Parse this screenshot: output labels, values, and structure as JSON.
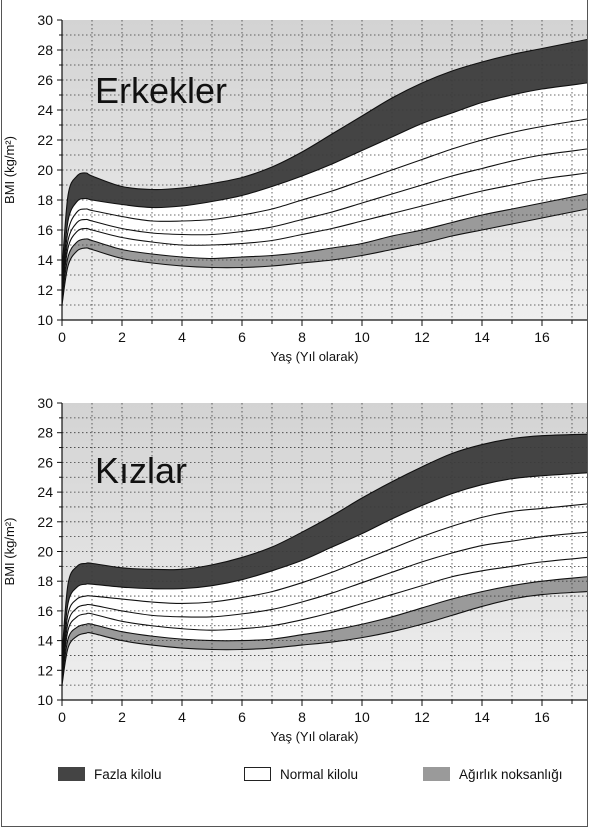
{
  "colors": {
    "overweight": "#444444",
    "normal": "#ffffff",
    "underweight": "#9a9a9a",
    "background": "#d8d8d8",
    "grid": "#3a3a3a"
  },
  "legend": {
    "overweight_label": "Fazla kilolu",
    "normal_label": "Normal kilolu",
    "underweight_label": "Ağırlık noksanlığı"
  },
  "chart_data": [
    {
      "type": "area",
      "title": "Erkekler",
      "xlabel": "Yaş (Yıl olarak)",
      "ylabel": "BMI (kg/m²)",
      "xlim": [
        0,
        17.5
      ],
      "ylim": [
        10,
        30
      ],
      "x_ticks": [
        0,
        2,
        4,
        6,
        8,
        10,
        12,
        14,
        16
      ],
      "y_ticks": [
        10,
        12,
        14,
        16,
        18,
        20,
        22,
        24,
        26,
        28,
        30
      ],
      "grid": true,
      "x": [
        0,
        0.2,
        0.5,
        0.8,
        1,
        2,
        3,
        4,
        5,
        6,
        7,
        8,
        9,
        10,
        11,
        12,
        13,
        14,
        15,
        16,
        17.5
      ],
      "series": [
        {
          "values": [
            13.2,
            18.3,
            19.6,
            19.8,
            19.6,
            18.9,
            18.7,
            18.8,
            19.1,
            19.5,
            20.2,
            21.2,
            22.4,
            23.6,
            24.8,
            25.8,
            26.6,
            27.2,
            27.7,
            28.1,
            28.7
          ]
        },
        {
          "values": [
            12.6,
            16.6,
            17.9,
            18.1,
            18.0,
            17.7,
            17.5,
            17.6,
            17.9,
            18.3,
            18.9,
            19.6,
            20.4,
            21.3,
            22.2,
            23.1,
            23.8,
            24.5,
            25.0,
            25.4,
            25.8
          ]
        },
        {
          "values": [
            12.3,
            15.9,
            17.2,
            17.4,
            17.3,
            16.9,
            16.6,
            16.6,
            16.7,
            17.0,
            17.4,
            18.0,
            18.6,
            19.3,
            20.0,
            20.7,
            21.4,
            22.0,
            22.5,
            22.9,
            23.4
          ]
        },
        {
          "values": [
            12.0,
            15.3,
            16.5,
            16.7,
            16.6,
            16.1,
            15.8,
            15.7,
            15.7,
            15.9,
            16.2,
            16.7,
            17.2,
            17.8,
            18.4,
            19.0,
            19.6,
            20.1,
            20.6,
            21.0,
            21.4
          ]
        },
        {
          "values": [
            11.7,
            14.8,
            15.9,
            16.1,
            16.0,
            15.5,
            15.2,
            15.0,
            15.0,
            15.1,
            15.3,
            15.7,
            16.1,
            16.6,
            17.1,
            17.6,
            18.1,
            18.6,
            19.0,
            19.4,
            19.8
          ]
        },
        {
          "values": [
            11.4,
            14.2,
            15.2,
            15.4,
            15.3,
            14.7,
            14.4,
            14.2,
            14.1,
            14.2,
            14.3,
            14.5,
            14.8,
            15.1,
            15.6,
            16.0,
            16.5,
            17.0,
            17.4,
            17.8,
            18.4
          ]
        },
        {
          "values": [
            11.0,
            13.6,
            14.6,
            14.8,
            14.7,
            14.1,
            13.8,
            13.6,
            13.5,
            13.5,
            13.6,
            13.8,
            14.0,
            14.3,
            14.7,
            15.1,
            15.6,
            16.0,
            16.4,
            16.8,
            17.4
          ]
        }
      ]
    },
    {
      "type": "area",
      "title": "Kızlar",
      "xlabel": "Yaş (Yıl olarak)",
      "ylabel": "BMI (kg/m²)",
      "xlim": [
        0,
        17.5
      ],
      "ylim": [
        10,
        30
      ],
      "x_ticks": [
        0,
        2,
        4,
        6,
        8,
        10,
        12,
        14,
        16
      ],
      "y_ticks": [
        10,
        12,
        14,
        16,
        18,
        20,
        22,
        24,
        26,
        28,
        30
      ],
      "grid": true,
      "x": [
        0,
        0.2,
        0.5,
        0.8,
        1,
        2,
        3,
        4,
        5,
        6,
        7,
        8,
        9,
        10,
        11,
        12,
        13,
        14,
        15,
        16,
        17.5
      ],
      "series": [
        {
          "values": [
            13.0,
            17.8,
            19.0,
            19.2,
            19.2,
            18.9,
            18.8,
            18.8,
            19.1,
            19.6,
            20.3,
            21.3,
            22.4,
            23.6,
            24.7,
            25.7,
            26.6,
            27.2,
            27.6,
            27.8,
            27.9
          ]
        },
        {
          "values": [
            12.5,
            16.5,
            17.6,
            17.8,
            17.8,
            17.6,
            17.5,
            17.5,
            17.7,
            18.1,
            18.7,
            19.4,
            20.3,
            21.2,
            22.2,
            23.1,
            23.9,
            24.5,
            24.9,
            25.1,
            25.3
          ]
        },
        {
          "values": [
            12.2,
            15.8,
            16.8,
            17.0,
            17.0,
            16.8,
            16.6,
            16.5,
            16.6,
            16.9,
            17.3,
            17.9,
            18.6,
            19.4,
            20.2,
            21.0,
            21.7,
            22.3,
            22.7,
            22.9,
            23.2
          ]
        },
        {
          "values": [
            11.9,
            15.2,
            16.2,
            16.4,
            16.4,
            16.0,
            15.7,
            15.6,
            15.6,
            15.8,
            16.1,
            16.6,
            17.2,
            17.9,
            18.6,
            19.3,
            19.9,
            20.4,
            20.7,
            21.0,
            21.3
          ]
        },
        {
          "values": [
            11.6,
            14.7,
            15.6,
            15.8,
            15.8,
            15.3,
            15.0,
            14.8,
            14.7,
            14.8,
            15.0,
            15.4,
            15.9,
            16.5,
            17.1,
            17.7,
            18.3,
            18.7,
            19.0,
            19.3,
            19.6
          ]
        },
        {
          "values": [
            11.3,
            14.1,
            14.9,
            15.1,
            15.1,
            14.6,
            14.3,
            14.1,
            14.0,
            14.0,
            14.1,
            14.4,
            14.7,
            15.1,
            15.6,
            16.2,
            16.8,
            17.3,
            17.7,
            18.0,
            18.3
          ]
        },
        {
          "values": [
            11.0,
            13.5,
            14.3,
            14.5,
            14.5,
            14.0,
            13.7,
            13.5,
            13.4,
            13.4,
            13.5,
            13.7,
            13.9,
            14.2,
            14.6,
            15.1,
            15.7,
            16.3,
            16.8,
            17.1,
            17.3
          ]
        }
      ]
    }
  ]
}
